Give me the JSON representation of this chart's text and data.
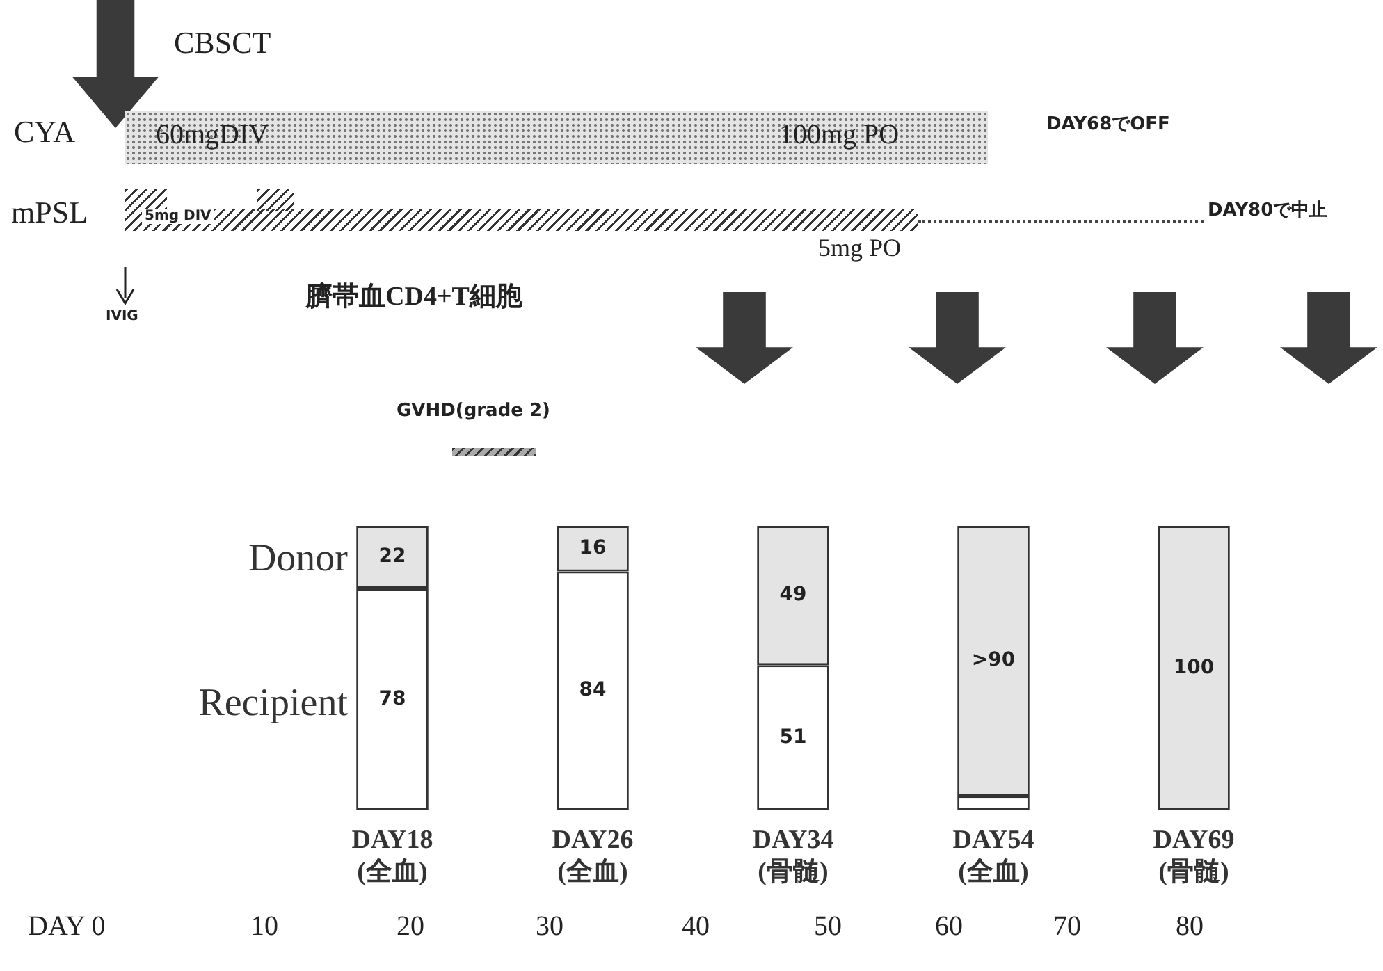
{
  "chart_data": {
    "type": "bar",
    "stacked": true,
    "legend": false,
    "grid": false,
    "tick_labels": "x",
    "ylim": [
      0,
      100
    ],
    "categories": [
      "DAY18\n(全血)",
      "DAY26\n(全血)",
      "DAY34\n(骨髄)",
      "DAY54\n(全血)",
      "DAY69\n(骨髄)"
    ],
    "series": [
      {
        "name": "Recipient",
        "color": "#ffffff",
        "values": [
          78,
          84,
          51,
          5,
          0
        ],
        "value_labels": [
          "78",
          "84",
          "51",
          null,
          null
        ]
      },
      {
        "name": "Donor",
        "color": "#e4e4e4",
        "values": [
          22,
          16,
          49,
          95,
          100
        ],
        "value_labels": [
          "22",
          "16",
          "49",
          ">90",
          "100"
        ]
      }
    ],
    "annotations": [
      "CBSCT",
      "CYA",
      "60mgDIV",
      "100mg PO",
      "DAY68でOFF",
      "mPSL",
      "5mg DIV",
      "5mg PO",
      "DAY80で中止",
      "IVIG",
      "臍帯血CD4+T細胞",
      "GVHD(grade 2)",
      "DAY 0",
      "10",
      "20",
      "30",
      "40",
      "50",
      "60",
      "70",
      "80"
    ]
  }
}
